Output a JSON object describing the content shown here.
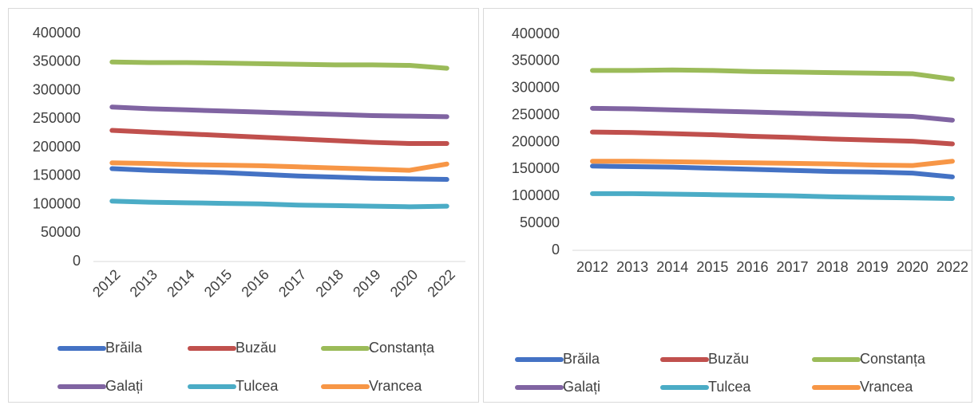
{
  "chart_data": [
    {
      "type": "line",
      "categories": [
        "2012",
        "2013",
        "2014",
        "2015",
        "2016",
        "2017",
        "2018",
        "2019",
        "2020",
        "2022"
      ],
      "ylim": [
        0,
        400000
      ],
      "yticks": [
        0,
        50000,
        100000,
        150000,
        200000,
        250000,
        300000,
        350000,
        400000
      ],
      "series": [
        {
          "name": "Brăila",
          "color": "#4472c4",
          "values": [
            163000,
            160000,
            158000,
            156000,
            153000,
            150000,
            148000,
            146000,
            145000,
            144000
          ]
        },
        {
          "name": "Buzău",
          "color": "#c0504d",
          "values": [
            230000,
            227000,
            224000,
            221000,
            218000,
            215000,
            212000,
            209000,
            207000,
            207000
          ]
        },
        {
          "name": "Constanța",
          "color": "#9bbb59",
          "values": [
            350000,
            349000,
            349000,
            348000,
            347000,
            346000,
            345000,
            345000,
            344000,
            339000
          ]
        },
        {
          "name": "Galați",
          "color": "#8064a2",
          "values": [
            271000,
            268000,
            266000,
            264000,
            262000,
            260000,
            258000,
            256000,
            255000,
            254000
          ]
        },
        {
          "name": "Tulcea",
          "color": "#4bacc6",
          "values": [
            106000,
            104000,
            103000,
            102000,
            101000,
            99000,
            98000,
            97000,
            96000,
            97000
          ]
        },
        {
          "name": "Vrancea",
          "color": "#f79646",
          "values": [
            173000,
            172000,
            170000,
            169000,
            168000,
            166000,
            164000,
            162000,
            160000,
            171000
          ]
        }
      ]
    },
    {
      "type": "line",
      "categories": [
        "2012",
        "2013",
        "2014",
        "2015",
        "2016",
        "2017",
        "2018",
        "2019",
        "2020",
        "2022"
      ],
      "ylim": [
        0,
        400000
      ],
      "yticks": [
        0,
        50000,
        100000,
        150000,
        200000,
        250000,
        300000,
        350000,
        400000
      ],
      "series": [
        {
          "name": "Brăila",
          "color": "#4472c4",
          "values": [
            156000,
            155000,
            154000,
            152000,
            150000,
            148000,
            146000,
            145000,
            143000,
            136000
          ]
        },
        {
          "name": "Buzău",
          "color": "#c0504d",
          "values": [
            219000,
            218000,
            216000,
            214000,
            211000,
            209000,
            206000,
            204000,
            202000,
            197000
          ]
        },
        {
          "name": "Constanța",
          "color": "#9bbb59",
          "values": [
            333000,
            333000,
            334000,
            333000,
            331000,
            330000,
            329000,
            328000,
            327000,
            317000
          ]
        },
        {
          "name": "Galați",
          "color": "#8064a2",
          "values": [
            263000,
            262000,
            260000,
            258000,
            256000,
            254000,
            252000,
            250000,
            248000,
            241000
          ]
        },
        {
          "name": "Tulcea",
          "color": "#4bacc6",
          "values": [
            105000,
            105000,
            104000,
            103000,
            102000,
            101000,
            99000,
            98000,
            97000,
            96000
          ]
        },
        {
          "name": "Vrancea",
          "color": "#f79646",
          "values": [
            165000,
            165000,
            164000,
            163000,
            162000,
            161000,
            160000,
            158000,
            157000,
            165000
          ]
        }
      ]
    }
  ]
}
